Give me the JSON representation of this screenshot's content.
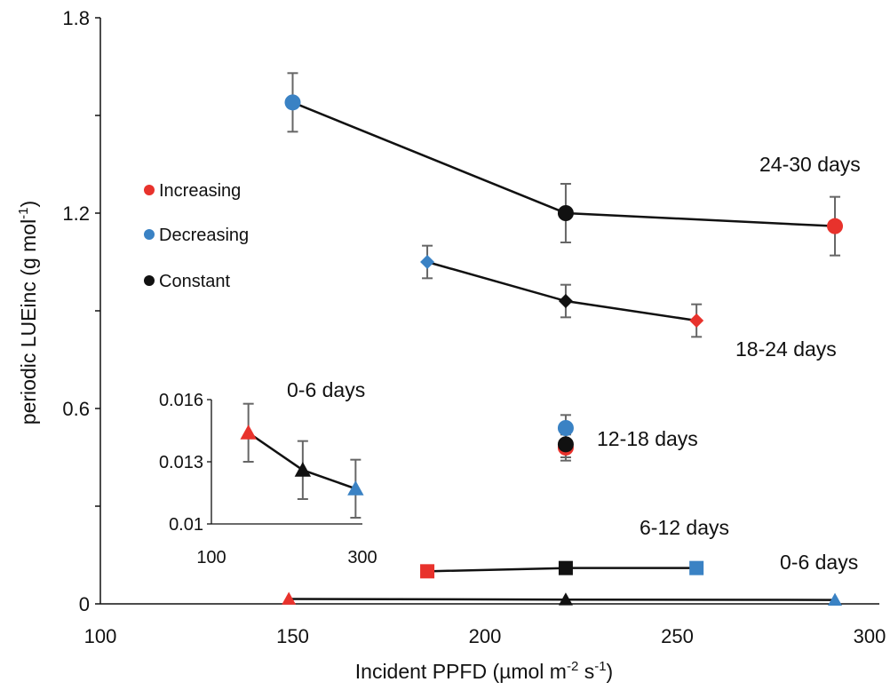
{
  "chart_data": [
    {
      "type": "scatter",
      "xlabel_main": "Incident PPFD (µmol m",
      "xlabel_sup1": "-2",
      "xlabel_mid": " s",
      "xlabel_sup2": "-1",
      "xlabel_end": ")",
      "ylabel_main": "periodic LUEinc (g mol",
      "ylabel_sup": "-1",
      "ylabel_end": ")",
      "xlim": [
        100,
        300
      ],
      "ylim": [
        0,
        1.8
      ],
      "xticks": [
        100,
        150,
        200,
        250,
        300
      ],
      "yticks": [
        0,
        0.6,
        1.2,
        1.8
      ],
      "xtick_labels": [
        "100",
        "150",
        "200",
        "250",
        "300"
      ],
      "ytick_labels": [
        "0",
        "0.6",
        "1.2",
        "1.8"
      ],
      "grid": false,
      "legend": {
        "placement": "left",
        "entries": [
          {
            "name": "Increasing",
            "color": "#e8322c"
          },
          {
            "name": "Decreasing",
            "color": "#3a82c4"
          },
          {
            "name": "Constant",
            "color": "#111111"
          }
        ]
      },
      "series": [
        {
          "label": "24-30 days",
          "marker": "circle",
          "connected": true,
          "points": [
            {
              "x": 150,
              "y": 1.54,
              "err": 0.09,
              "category": "Decreasing"
            },
            {
              "x": 221,
              "y": 1.2,
              "err": 0.09,
              "category": "Constant"
            },
            {
              "x": 291,
              "y": 1.16,
              "err": 0.09,
              "category": "Increasing"
            }
          ]
        },
        {
          "label": "18-24 days",
          "marker": "diamond",
          "connected": true,
          "points": [
            {
              "x": 185,
              "y": 1.05,
              "err": 0.05,
              "category": "Decreasing"
            },
            {
              "x": 221,
              "y": 0.93,
              "err": 0.05,
              "category": "Constant"
            },
            {
              "x": 255,
              "y": 0.87,
              "err": 0.05,
              "category": "Increasing"
            }
          ]
        },
        {
          "label": "12-18 days",
          "marker": "circle",
          "connected": false,
          "points": [
            {
              "x": 221,
              "y": 0.54,
              "err": 0.04,
              "category": "Decreasing"
            },
            {
              "x": 221,
              "y": 0.48,
              "err": 0.04,
              "category": "Increasing"
            },
            {
              "x": 221,
              "y": 0.49,
              "err": 0.04,
              "category": "Constant"
            }
          ]
        },
        {
          "label": "6-12 days",
          "marker": "square",
          "connected": true,
          "points": [
            {
              "x": 185,
              "y": 0.1,
              "err": 0,
              "category": "Increasing"
            },
            {
              "x": 221,
              "y": 0.11,
              "err": 0,
              "category": "Constant"
            },
            {
              "x": 255,
              "y": 0.11,
              "err": 0,
              "category": "Decreasing"
            }
          ]
        },
        {
          "label": "0-6 days",
          "marker": "triangle",
          "connected": true,
          "points": [
            {
              "x": 149,
              "y": 0.015,
              "err": 0,
              "category": "Increasing"
            },
            {
              "x": 221,
              "y": 0.013,
              "err": 0,
              "category": "Constant"
            },
            {
              "x": 291,
              "y": 0.012,
              "err": 0,
              "category": "Decreasing"
            }
          ]
        }
      ]
    },
    {
      "type": "scatter",
      "role": "inset",
      "label": "0-6 days",
      "xlim": [
        100,
        300
      ],
      "ylim": [
        0.01,
        0.016
      ],
      "xtick_labels": [
        "100",
        "300"
      ],
      "ytick_labels": [
        "0.016",
        "0.013",
        "0.01"
      ],
      "yticks": [
        0.016,
        0.013,
        0.01
      ],
      "xticks": [
        100,
        300
      ],
      "series": [
        {
          "marker": "triangle",
          "connected": true,
          "points": [
            {
              "x": 149,
              "y": 0.0144,
              "err": 0.0014,
              "category": "Increasing"
            },
            {
              "x": 221,
              "y": 0.0126,
              "err": 0.0014,
              "category": "Constant"
            },
            {
              "x": 291,
              "y": 0.0117,
              "err": 0.0014,
              "category": "Decreasing"
            }
          ]
        }
      ]
    }
  ]
}
